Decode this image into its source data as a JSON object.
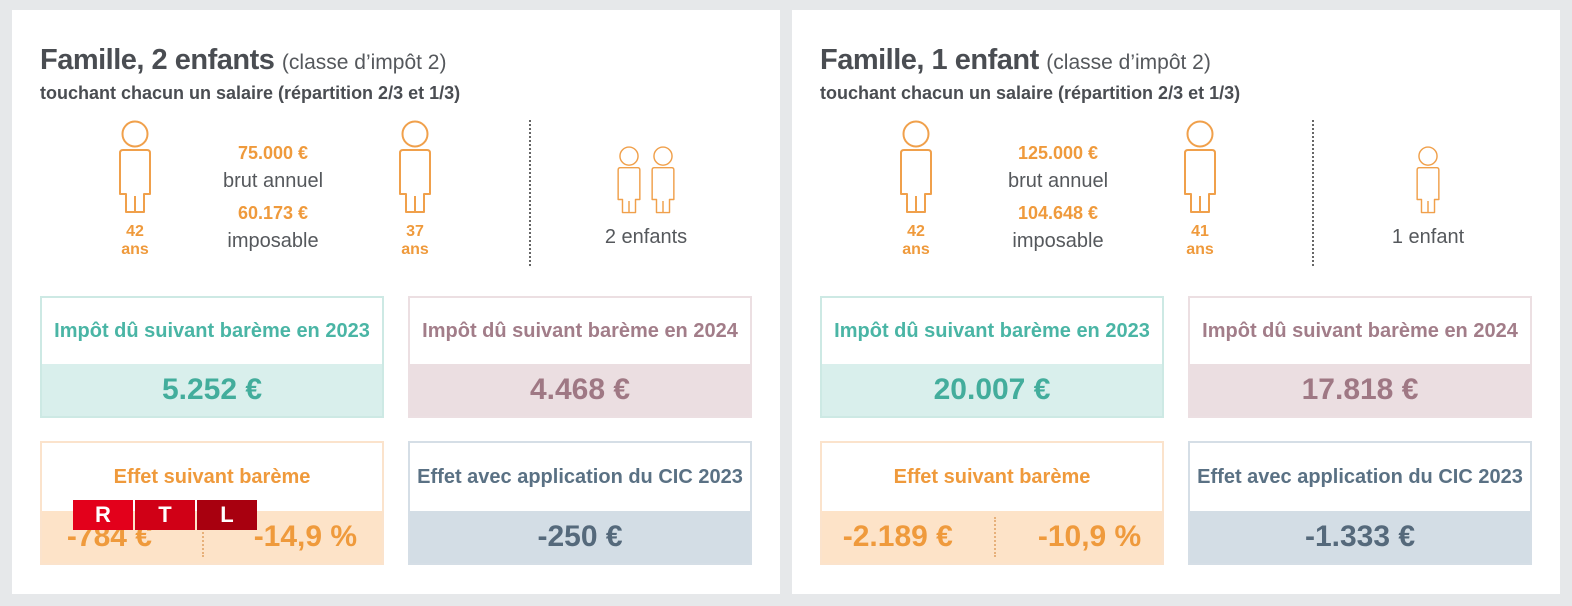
{
  "colors": {
    "teal": "#4ab5a5",
    "mauve": "#a27d89",
    "orange": "#ef9a3c",
    "slate": "#5a7184"
  },
  "panels": [
    {
      "title": "Famille, 2 enfants",
      "title_paren": "(classe d’impôt 2)",
      "subtitle": "touchant chacun un salaire (répartition 2/3 et 1/3)",
      "adult1_age": "42",
      "adult2_age": "37",
      "age_unit": "ans",
      "brut": "75.000 €",
      "brut_label": "brut annuel",
      "imposable": "60.173 €",
      "imposable_label": "imposable",
      "children_label": "2 enfants",
      "box_2023_label": "Impôt dû suivant barème en 2023",
      "box_2023_value": "5.252 €",
      "box_2024_label": "Impôt dû suivant barème en 2024",
      "box_2024_value": "4.468 €",
      "effect_label": "Effet suivant barème",
      "effect_amount": "-784 €",
      "effect_percent": "-14,9 %",
      "cic_label": "Effet avec application du CIC 2023",
      "cic_value": "-250 €"
    },
    {
      "title": "Famille, 1 enfant",
      "title_paren": "(classe d’impôt 2)",
      "subtitle": "touchant chacun un salaire (répartition 2/3 et 1/3)",
      "adult1_age": "42",
      "adult2_age": "41",
      "age_unit": "ans",
      "brut": "125.000 €",
      "brut_label": "brut annuel",
      "imposable": "104.648 €",
      "imposable_label": "imposable",
      "children_label": "1 enfant",
      "box_2023_label": "Impôt dû suivant barème en 2023",
      "box_2023_value": "20.007 €",
      "box_2024_label": "Impôt dû suivant barème en 2024",
      "box_2024_value": "17.818 €",
      "effect_label": "Effet suivant barème",
      "effect_amount": "-2.189 €",
      "effect_percent": "-10,9 %",
      "cic_label": "Effet avec application du CIC 2023",
      "cic_value": "-1.333 €"
    }
  ],
  "watermark": {
    "letters": [
      "R",
      "T",
      "L"
    ]
  }
}
